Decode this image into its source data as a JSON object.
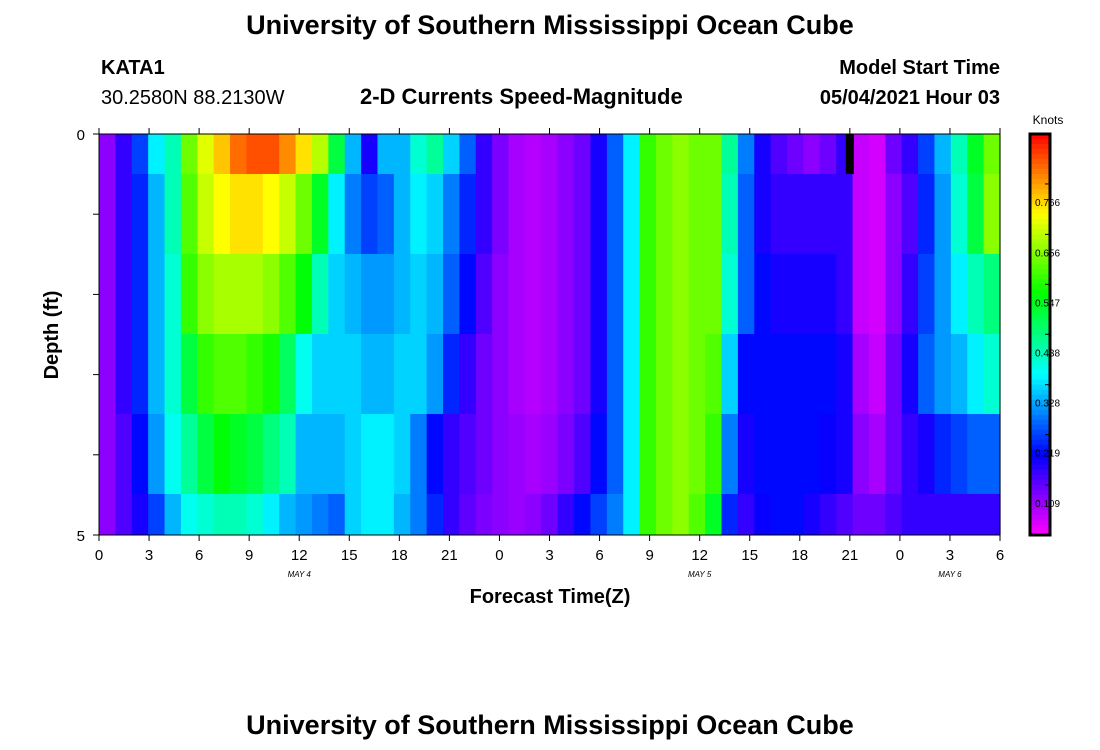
{
  "header": {
    "title": "University of Southern Mississippi Ocean Cube",
    "station": "KATA1",
    "coords": "30.2580N  88.2130W",
    "subtitle": "2-D Currents Speed-Magnitude",
    "start_label": "Model Start Time",
    "start_value": "05/04/2021 Hour 03"
  },
  "footer": {
    "title": "University of Southern Mississippi Ocean Cube"
  },
  "chart_data": {
    "type": "heatmap",
    "title": "2-D Currents Speed-Magnitude",
    "xlabel": "Forecast Time(Z)",
    "ylabel": "Depth (ft)",
    "x_hours": [
      0,
      54
    ],
    "ylim": [
      0,
      5
    ],
    "x_ticks": [
      "0",
      "3",
      "6",
      "9",
      "12",
      "15",
      "18",
      "21",
      "0",
      "3",
      "6",
      "9",
      "12",
      "15",
      "18",
      "21",
      "0",
      "3",
      "6"
    ],
    "y_ticks": [
      "0",
      "5"
    ],
    "date_labels": [
      {
        "text": "MAY 4",
        "hour": 12
      },
      {
        "text": "MAY 5",
        "hour": 36
      },
      {
        "text": "MAY 6",
        "hour": 51
      }
    ],
    "colorbar": {
      "label": "Knots",
      "min": 0,
      "max": 0.875,
      "ticks": [
        "0.766",
        "0.656",
        "0.547",
        "0.438",
        "0.328",
        "0.219",
        "0.109"
      ]
    },
    "marker_hour": 45,
    "depth_rows_ft": [
      "0-0.5",
      "0.5-1.5",
      "1.5-2.5",
      "2.5-3.5",
      "3.5-4.5",
      "4.5-5"
    ],
    "speed_knots": [
      [
        0.08,
        0.14,
        0.22,
        0.34,
        0.4,
        0.6,
        0.68,
        0.74,
        0.8,
        0.82,
        0.82,
        0.78,
        0.72,
        0.65,
        0.48,
        0.3,
        0.16,
        0.3,
        0.3,
        0.38,
        0.42,
        0.32,
        0.24,
        0.14,
        0.09,
        0.06,
        0.05,
        0.06,
        0.08,
        0.1,
        0.16,
        0.24,
        0.34,
        0.56,
        0.6,
        0.62,
        0.6,
        0.6,
        0.42,
        0.26,
        0.16,
        0.12,
        0.1,
        0.08,
        0.1,
        0.14,
        0.04,
        0.03,
        0.1,
        0.14,
        0.22,
        0.3,
        0.4,
        0.5,
        0.6
      ],
      [
        0.08,
        0.14,
        0.2,
        0.3,
        0.4,
        0.58,
        0.66,
        0.7,
        0.72,
        0.72,
        0.7,
        0.66,
        0.6,
        0.5,
        0.34,
        0.26,
        0.22,
        0.24,
        0.3,
        0.34,
        0.32,
        0.26,
        0.2,
        0.14,
        0.09,
        0.06,
        0.05,
        0.06,
        0.08,
        0.1,
        0.16,
        0.24,
        0.34,
        0.56,
        0.6,
        0.62,
        0.6,
        0.6,
        0.4,
        0.24,
        0.16,
        0.14,
        0.14,
        0.14,
        0.14,
        0.14,
        0.04,
        0.03,
        0.08,
        0.12,
        0.2,
        0.28,
        0.38,
        0.48,
        0.62
      ],
      [
        0.08,
        0.14,
        0.2,
        0.3,
        0.38,
        0.56,
        0.62,
        0.64,
        0.64,
        0.64,
        0.62,
        0.58,
        0.52,
        0.4,
        0.32,
        0.3,
        0.28,
        0.28,
        0.3,
        0.32,
        0.3,
        0.24,
        0.18,
        0.12,
        0.08,
        0.06,
        0.05,
        0.06,
        0.08,
        0.1,
        0.16,
        0.24,
        0.34,
        0.56,
        0.6,
        0.62,
        0.6,
        0.6,
        0.38,
        0.24,
        0.18,
        0.16,
        0.16,
        0.16,
        0.16,
        0.14,
        0.04,
        0.03,
        0.08,
        0.14,
        0.22,
        0.28,
        0.34,
        0.4,
        0.44
      ],
      [
        0.08,
        0.14,
        0.2,
        0.3,
        0.38,
        0.48,
        0.56,
        0.58,
        0.58,
        0.56,
        0.54,
        0.46,
        0.36,
        0.32,
        0.32,
        0.32,
        0.3,
        0.3,
        0.32,
        0.32,
        0.28,
        0.2,
        0.14,
        0.1,
        0.08,
        0.06,
        0.05,
        0.06,
        0.08,
        0.1,
        0.16,
        0.24,
        0.34,
        0.56,
        0.6,
        0.62,
        0.6,
        0.58,
        0.32,
        0.18,
        0.18,
        0.18,
        0.18,
        0.18,
        0.18,
        0.16,
        0.06,
        0.04,
        0.1,
        0.16,
        0.24,
        0.28,
        0.3,
        0.34,
        0.38
      ],
      [
        0.08,
        0.12,
        0.18,
        0.28,
        0.36,
        0.42,
        0.48,
        0.52,
        0.5,
        0.48,
        0.44,
        0.4,
        0.3,
        0.3,
        0.3,
        0.32,
        0.34,
        0.34,
        0.32,
        0.26,
        0.18,
        0.14,
        0.12,
        0.1,
        0.08,
        0.07,
        0.06,
        0.07,
        0.09,
        0.12,
        0.18,
        0.24,
        0.34,
        0.56,
        0.6,
        0.62,
        0.6,
        0.56,
        0.26,
        0.16,
        0.18,
        0.18,
        0.18,
        0.18,
        0.17,
        0.16,
        0.08,
        0.06,
        0.1,
        0.14,
        0.16,
        0.2,
        0.22,
        0.24,
        0.24
      ],
      [
        0.08,
        0.12,
        0.16,
        0.22,
        0.3,
        0.36,
        0.38,
        0.4,
        0.4,
        0.38,
        0.34,
        0.3,
        0.28,
        0.26,
        0.24,
        0.32,
        0.34,
        0.34,
        0.3,
        0.26,
        0.2,
        0.14,
        0.11,
        0.09,
        0.08,
        0.07,
        0.08,
        0.1,
        0.14,
        0.18,
        0.22,
        0.26,
        0.34,
        0.56,
        0.6,
        0.62,
        0.58,
        0.5,
        0.2,
        0.14,
        0.17,
        0.18,
        0.18,
        0.16,
        0.14,
        0.12,
        0.1,
        0.1,
        0.12,
        0.14,
        0.14,
        0.14,
        0.14,
        0.14,
        0.14
      ]
    ]
  }
}
